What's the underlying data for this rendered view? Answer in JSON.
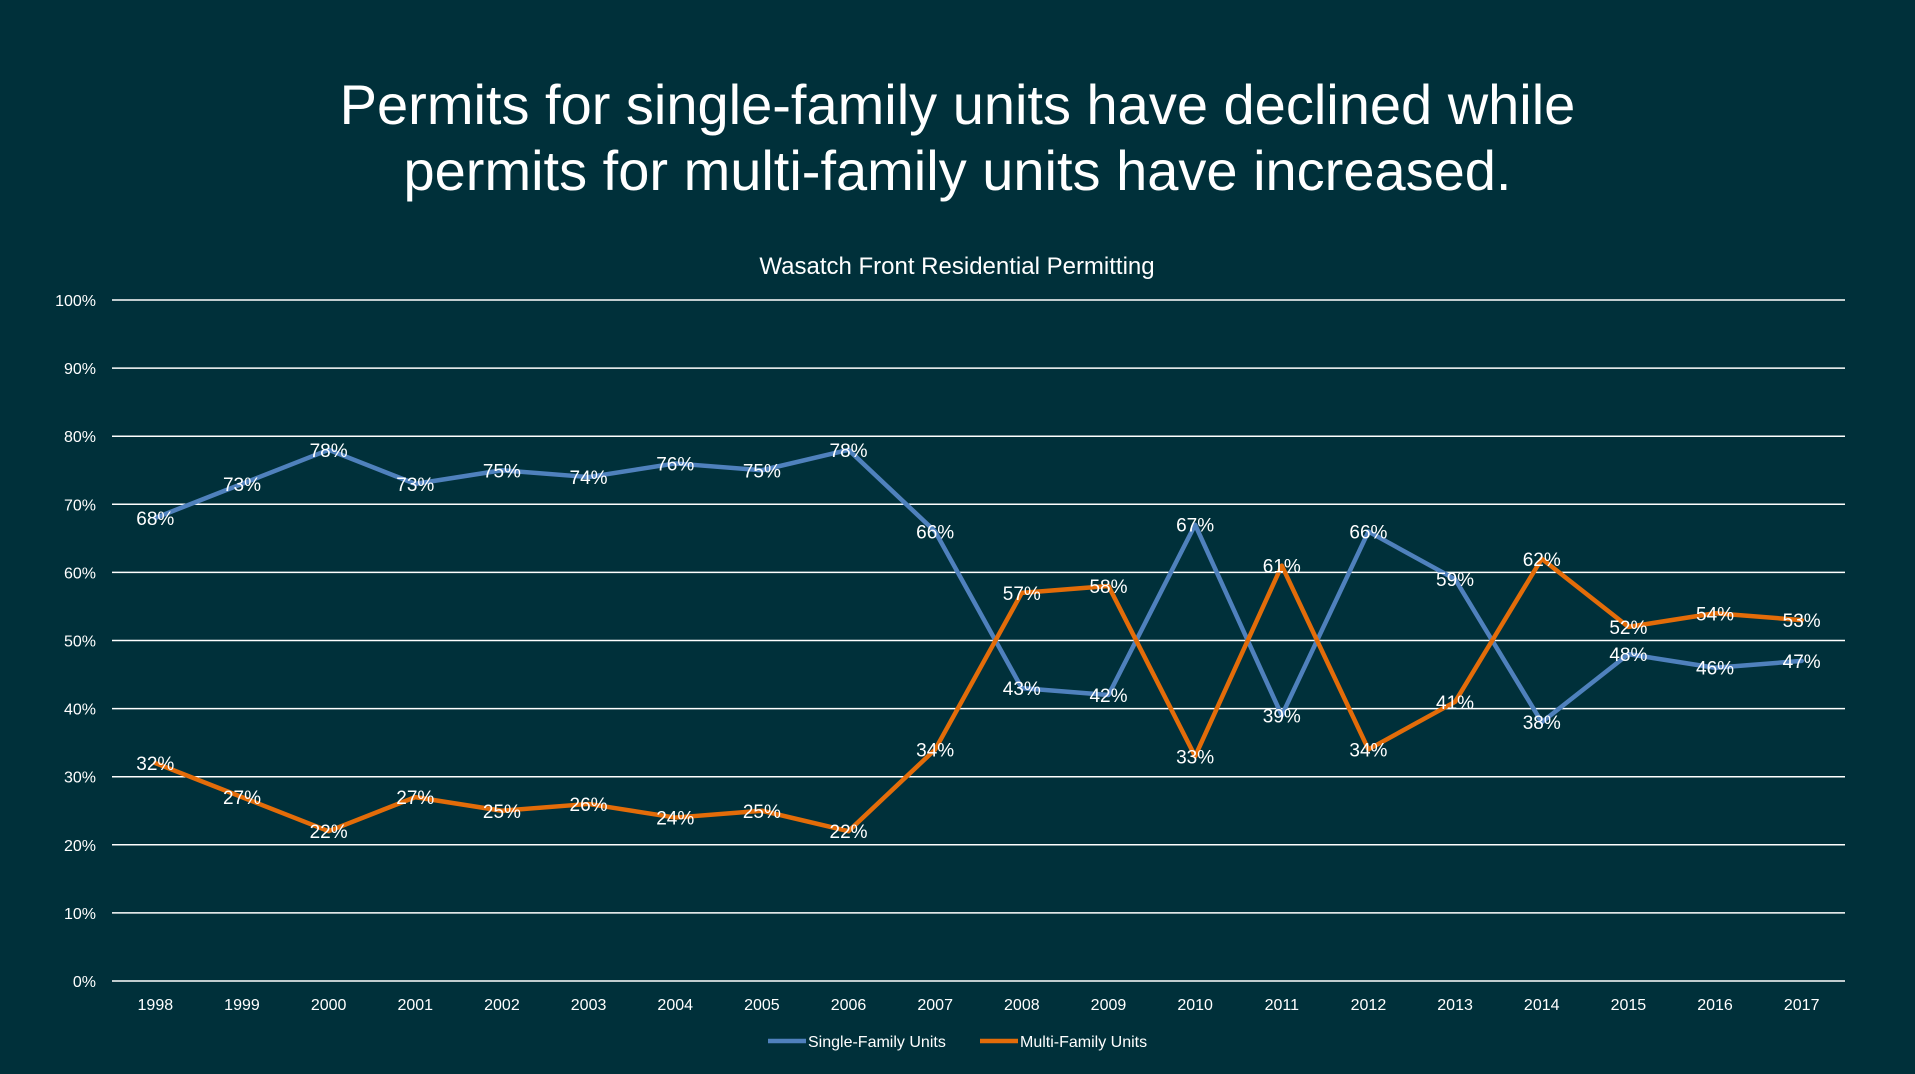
{
  "slide": {
    "title_line1": "Permits for single-family units have declined while",
    "title_line2": "permits for multi-family units have increased."
  },
  "chart_data": {
    "type": "line",
    "title": "Wasatch Front Residential Permitting",
    "xlabel": "",
    "ylabel": "",
    "ylim": [
      0,
      100
    ],
    "y_ticks": [
      "0%",
      "10%",
      "20%",
      "30%",
      "40%",
      "50%",
      "60%",
      "70%",
      "80%",
      "90%",
      "100%"
    ],
    "grid": true,
    "legend_position": "bottom",
    "categories": [
      "1998",
      "1999",
      "2000",
      "2001",
      "2002",
      "2003",
      "2004",
      "2005",
      "2006",
      "2007",
      "2008",
      "2009",
      "2010",
      "2011",
      "2012",
      "2013",
      "2014",
      "2015",
      "2016",
      "2017"
    ],
    "series": [
      {
        "name": "Single-Family Units",
        "color": "#4f81bd",
        "values": [
          68,
          73,
          78,
          73,
          75,
          74,
          76,
          75,
          78,
          66,
          43,
          42,
          67,
          39,
          66,
          59,
          38,
          48,
          46,
          47
        ],
        "labels": [
          "68%",
          "73%",
          "78%",
          "73%",
          "75%",
          "74%",
          "76%",
          "75%",
          "78%",
          "66%",
          "43%",
          "42%",
          "67%",
          "39%",
          "66%",
          "59%",
          "38%",
          "48%",
          "46%",
          "47%"
        ]
      },
      {
        "name": "Multi-Family Units",
        "color": "#e36c09",
        "values": [
          32,
          27,
          22,
          27,
          25,
          26,
          24,
          25,
          22,
          34,
          57,
          58,
          33,
          61,
          34,
          41,
          62,
          52,
          54,
          53
        ],
        "labels": [
          "32%",
          "27%",
          "22%",
          "27%",
          "25%",
          "26%",
          "24%",
          "25%",
          "22%",
          "34%",
          "57%",
          "58%",
          "33%",
          "61%",
          "34%",
          "41%",
          "62%",
          "52%",
          "54%",
          "53%"
        ]
      }
    ]
  }
}
